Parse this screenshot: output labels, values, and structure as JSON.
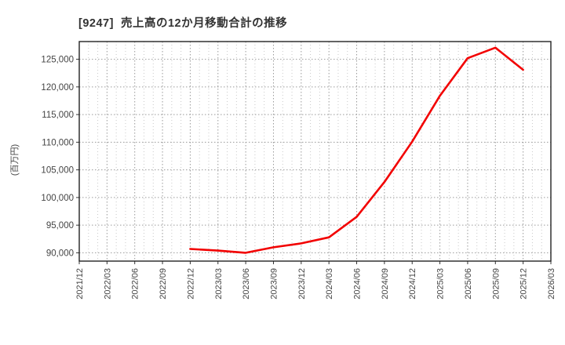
{
  "page": {
    "window_title": "[9247]  売上高の12か月移動合計の推移"
  },
  "chart_data": {
    "type": "line",
    "title": "[9247]  売上高の12か月移動合計の推移",
    "xlabel": "",
    "ylabel": "(百万円)",
    "legend_position": "none",
    "grid": true,
    "line_color": "#f20000",
    "axis_text_color": "#444444",
    "ylim": [
      88500,
      128200
    ],
    "y_ticks": [
      90000,
      95000,
      100000,
      105000,
      110000,
      115000,
      120000,
      125000
    ],
    "y_tick_labels": [
      "90,000",
      "95,000",
      "100,000",
      "105,000",
      "110,000",
      "115,000",
      "120,000",
      "125,000"
    ],
    "x_tick_labels": [
      "2021/12",
      "2022/03",
      "2022/06",
      "2022/09",
      "2022/12",
      "2023/03",
      "2023/06",
      "2023/09",
      "2023/12",
      "2024/03",
      "2024/06",
      "2024/09",
      "2024/12",
      "2025/03",
      "2025/06",
      "2025/09",
      "2025/12",
      "2026/03"
    ],
    "minor_x_grid": "monthly",
    "series": [
      {
        "name": "売上高の12か月移動合計",
        "points": [
          {
            "x": "2022/12",
            "y": 90700
          },
          {
            "x": "2023/03",
            "y": 90400
          },
          {
            "x": "2023/06",
            "y": 90000
          },
          {
            "x": "2023/09",
            "y": 91000
          },
          {
            "x": "2023/12",
            "y": 91700
          },
          {
            "x": "2024/03",
            "y": 92800
          },
          {
            "x": "2024/06",
            "y": 96500
          },
          {
            "x": "2024/09",
            "y": 102800
          },
          {
            "x": "2024/12",
            "y": 110100
          },
          {
            "x": "2025/03",
            "y": 118400
          },
          {
            "x": "2025/06",
            "y": 125200
          },
          {
            "x": "2025/09",
            "y": 127100
          },
          {
            "x": "2025/12",
            "y": 123100
          }
        ]
      }
    ]
  }
}
